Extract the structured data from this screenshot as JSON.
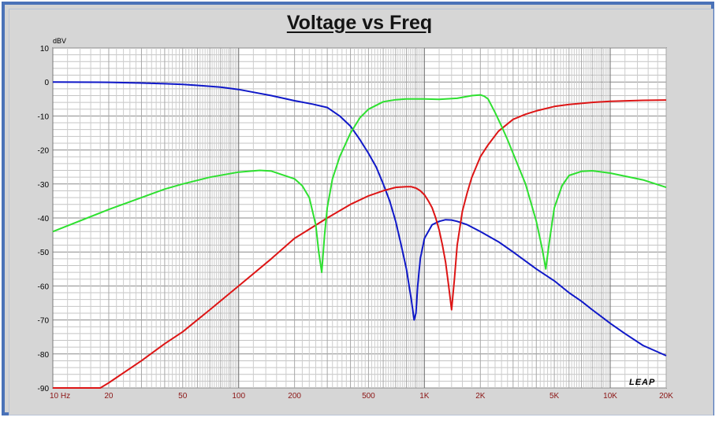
{
  "chart_data": {
    "type": "line",
    "title": "Voltage vs Freq",
    "ylabel": "dBV",
    "xscale": "log",
    "xlim": [
      10,
      20000
    ],
    "ylim": [
      -90,
      10
    ],
    "grid": true,
    "yticks": [
      "10",
      "0",
      "-10",
      "-20",
      "-30",
      "-40",
      "-50",
      "-60",
      "-70",
      "-80",
      "-90"
    ],
    "xticks": [
      {
        "value": 10,
        "label": "10  Hz"
      },
      {
        "value": 20,
        "label": "20"
      },
      {
        "value": 50,
        "label": "50"
      },
      {
        "value": 100,
        "label": "100"
      },
      {
        "value": 200,
        "label": "200"
      },
      {
        "value": 500,
        "label": "500"
      },
      {
        "value": 1000,
        "label": "1K"
      },
      {
        "value": 2000,
        "label": "2K"
      },
      {
        "value": 5000,
        "label": "5K"
      },
      {
        "value": 10000,
        "label": "10K"
      },
      {
        "value": 20000,
        "label": "20K"
      }
    ],
    "logo": "LEAP",
    "series": [
      {
        "color": "#0f18c8",
        "x": [
          10,
          20,
          30,
          40,
          50,
          60,
          80,
          100,
          120,
          150,
          200,
          250,
          300,
          350,
          400,
          450,
          500,
          550,
          600,
          650,
          700,
          750,
          800,
          850,
          880,
          900,
          920,
          950,
          1000,
          1100,
          1200,
          1300,
          1400,
          1500,
          1700,
          2000,
          2500,
          3000,
          4000,
          5000,
          6000,
          7000,
          8000,
          10000,
          12000,
          15000,
          20000
        ],
        "y": [
          0,
          -0.1,
          -0.3,
          -0.5,
          -0.7,
          -1.0,
          -1.5,
          -2.2,
          -3.0,
          -4.0,
          -5.5,
          -6.5,
          -7.5,
          -10,
          -13,
          -17,
          -21,
          -25,
          -30,
          -35,
          -41,
          -48,
          -55,
          -64,
          -70,
          -68,
          -60,
          -52,
          -46,
          -42,
          -41,
          -40.5,
          -40.6,
          -41,
          -42,
          -44,
          -47,
          -50,
          -55,
          -58.5,
          -62,
          -64.5,
          -67,
          -71,
          -74,
          -77.5,
          -80.5
        ]
      },
      {
        "color": "#dd1515",
        "x": [
          10,
          18,
          20,
          30,
          40,
          50,
          70,
          100,
          150,
          200,
          300,
          400,
          500,
          600,
          700,
          800,
          850,
          900,
          950,
          1000,
          1050,
          1100,
          1150,
          1200,
          1250,
          1300,
          1350,
          1400,
          1450,
          1500,
          1550,
          1600,
          1700,
          1800,
          2000,
          2200,
          2500,
          3000,
          3500,
          4000,
          5000,
          6000,
          8000,
          10000,
          15000,
          20000
        ],
        "y": [
          -90,
          -90,
          -88.5,
          -82,
          -77,
          -73.5,
          -67,
          -60,
          -52,
          -46,
          -40,
          -36,
          -33.5,
          -32,
          -31,
          -30.8,
          -30.8,
          -31.2,
          -32,
          -33.2,
          -35,
          -37,
          -40,
          -43.5,
          -48,
          -53,
          -60,
          -67,
          -58,
          -48,
          -43,
          -38,
          -32.5,
          -28,
          -22,
          -18.5,
          -14.5,
          -11,
          -9.5,
          -8.5,
          -7.2,
          -6.6,
          -6,
          -5.7,
          -5.4,
          -5.3
        ]
      },
      {
        "color": "#2ee030",
        "x": [
          10,
          20,
          30,
          40,
          50,
          70,
          100,
          130,
          150,
          200,
          220,
          240,
          260,
          270,
          280,
          290,
          300,
          320,
          350,
          400,
          450,
          500,
          600,
          700,
          800,
          1000,
          1200,
          1500,
          1800,
          2000,
          2100,
          2200,
          2400,
          2600,
          2800,
          3000,
          3500,
          4000,
          4300,
          4500,
          4700,
          5000,
          5500,
          6000,
          7000,
          8000,
          10000,
          15000,
          20000
        ],
        "y": [
          -44,
          -37.5,
          -34,
          -31.5,
          -30,
          -28,
          -26.5,
          -26,
          -26.2,
          -28.5,
          -30.5,
          -34,
          -42,
          -50,
          -56,
          -45,
          -37,
          -28.5,
          -22,
          -15,
          -10.5,
          -8,
          -5.8,
          -5.2,
          -5,
          -5,
          -5.1,
          -4.8,
          -4,
          -3.8,
          -4.2,
          -5,
          -9,
          -13,
          -17,
          -21,
          -30,
          -41,
          -49,
          -55,
          -47,
          -37,
          -30.5,
          -27.5,
          -26.3,
          -26.1,
          -26.8,
          -28.8,
          -31
        ]
      }
    ]
  }
}
